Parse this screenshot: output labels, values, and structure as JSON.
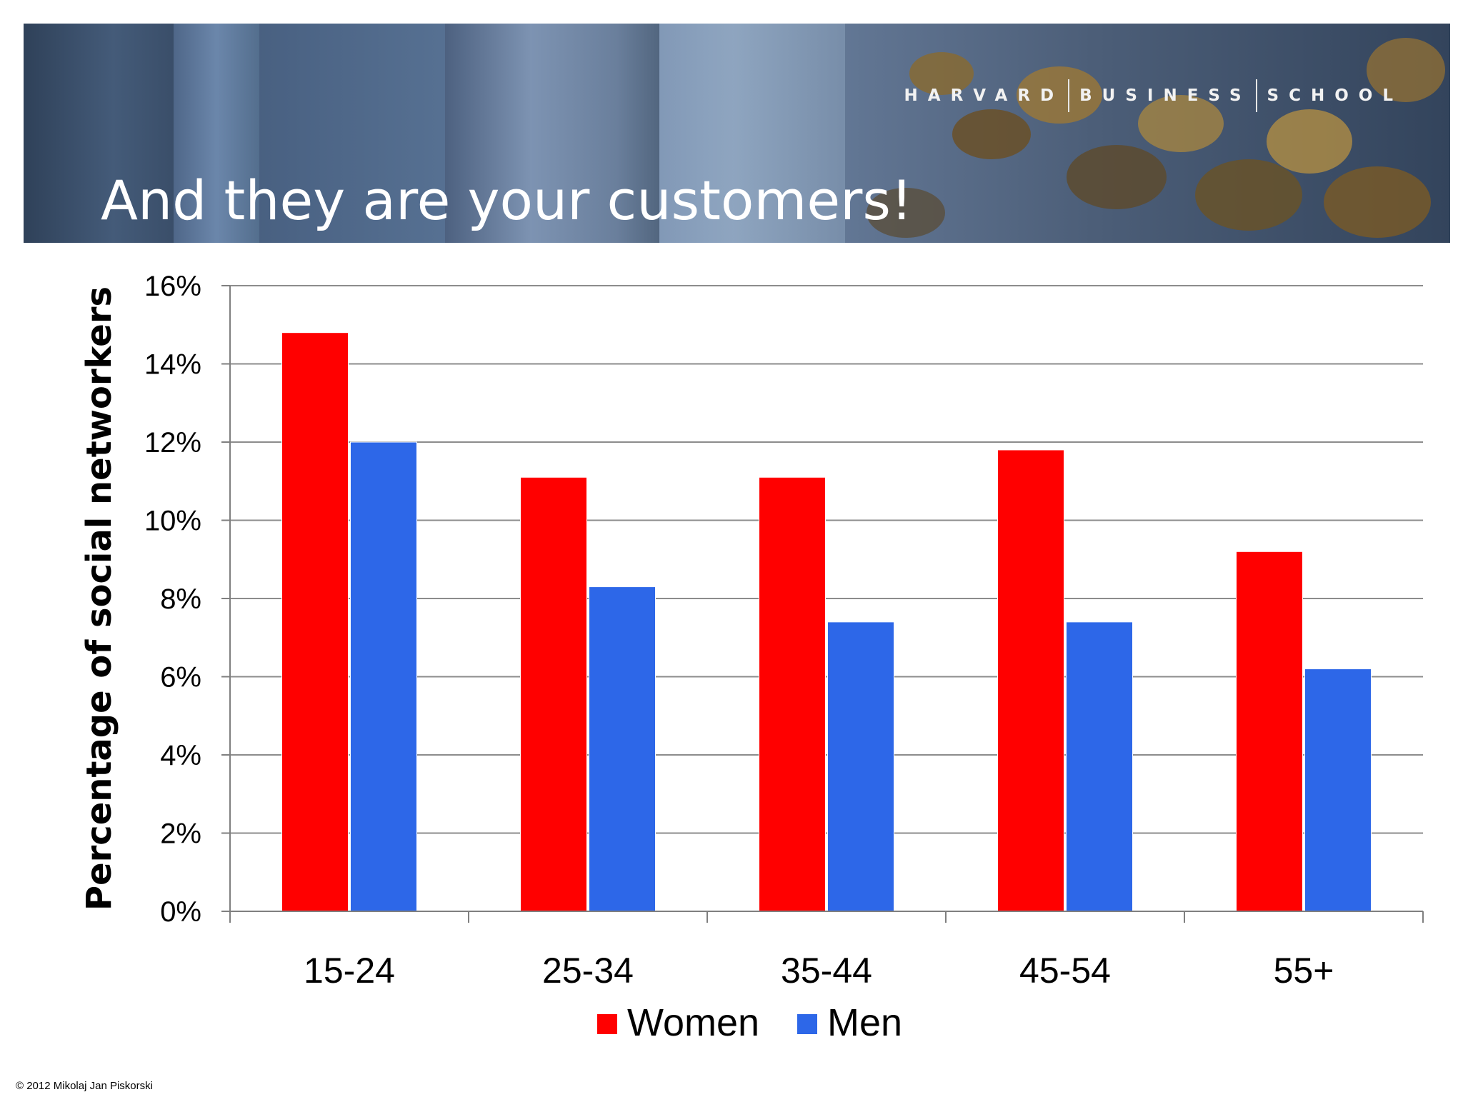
{
  "slide": {
    "title": "And they are your customers!",
    "brand": [
      "HARVARD",
      "BUSINESS",
      "SCHOOL"
    ],
    "copyright": "© 2012 Mikolaj Jan Piskorski"
  },
  "colors": {
    "women": "#ff0000",
    "men": "#2d67e8",
    "grid": "#8c8c8c",
    "axis": "#7f7f7f"
  },
  "chart_data": {
    "type": "bar",
    "categories": [
      "15-24",
      "25-34",
      "35-44",
      "45-54",
      "55+"
    ],
    "series": [
      {
        "name": "Women",
        "values": [
          14.8,
          11.1,
          11.1,
          11.8,
          9.2
        ]
      },
      {
        "name": "Men",
        "values": [
          12.0,
          8.3,
          7.4,
          7.4,
          6.2
        ]
      }
    ],
    "ylabel": "Percentage of social networkers",
    "xlabel": "",
    "ylim": [
      0,
      16
    ],
    "yticks": [
      0,
      2,
      4,
      6,
      8,
      10,
      12,
      14,
      16
    ],
    "ytick_labels": [
      "0%",
      "2%",
      "4%",
      "6%",
      "8%",
      "10%",
      "12%",
      "14%",
      "16%"
    ],
    "grid": true,
    "legend_position": "bottom"
  }
}
